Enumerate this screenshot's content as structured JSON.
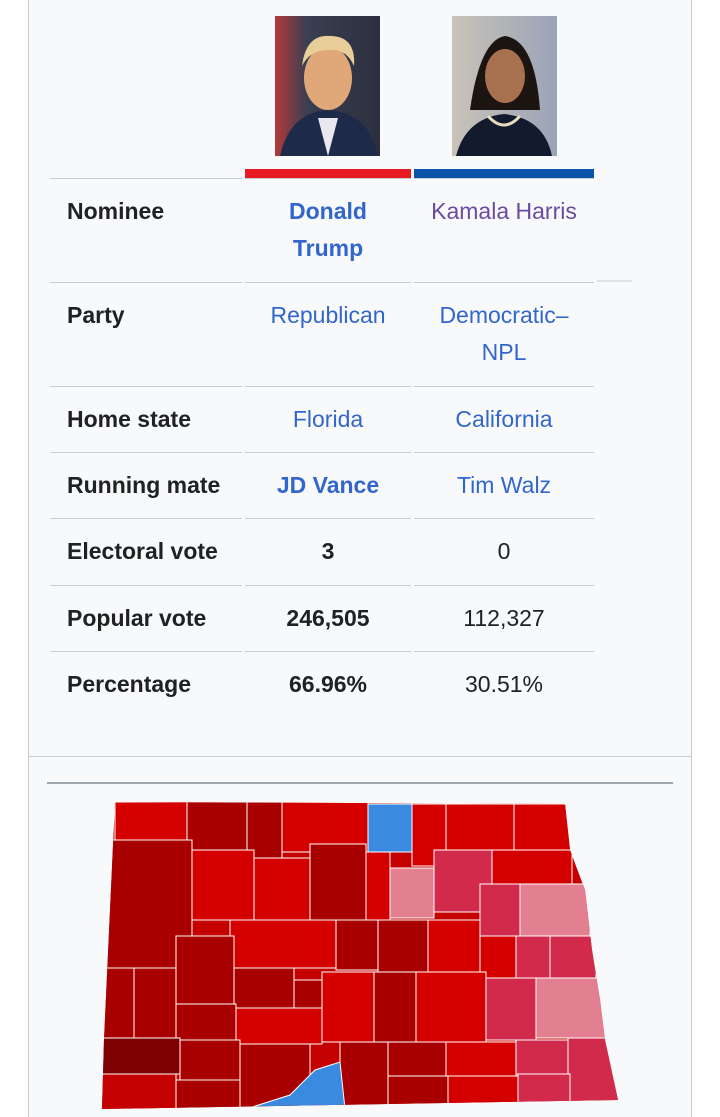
{
  "infobox": {
    "candidates": [
      {
        "name": "Donald Trump"
      },
      {
        "name": "Kamala Harris"
      }
    ],
    "rows": [
      {
        "label": "Nominee",
        "values": [
          "Donald Trump",
          "Kamala Harris"
        ]
      },
      {
        "label": "Party",
        "values": [
          "Republican",
          "Democratic–NPL"
        ]
      },
      {
        "label": "Home state",
        "values": [
          "Florida",
          "California"
        ]
      },
      {
        "label": "Running mate",
        "values": [
          "JD Vance",
          "Tim Walz"
        ]
      },
      {
        "label": "Electoral vote",
        "values": [
          "3",
          "0"
        ]
      },
      {
        "label": "Popular vote",
        "values": [
          "246,505",
          "112,327"
        ]
      },
      {
        "label": "Percentage",
        "values": [
          "66.96%",
          "30.51%"
        ]
      }
    ]
  }
}
